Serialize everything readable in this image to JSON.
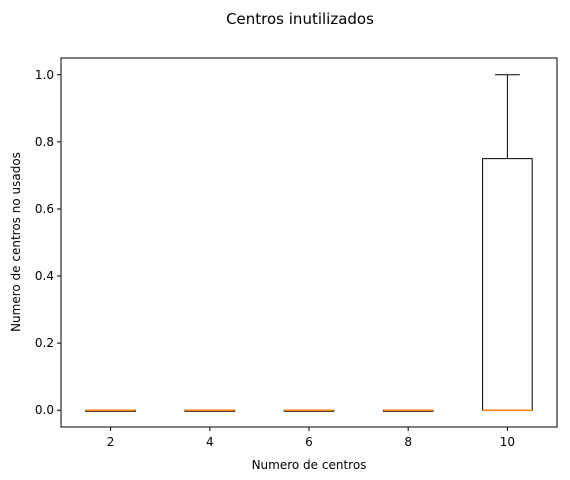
{
  "chart_data": {
    "type": "box",
    "title": "Centros inutilizados",
    "xlabel": "Numero de centros",
    "ylabel": "Numero de centros no usados",
    "categories": [
      "2",
      "4",
      "6",
      "8",
      "10"
    ],
    "boxes": [
      {
        "category": "2",
        "min": 0,
        "q1": 0,
        "median": 0,
        "q3": 0,
        "max": 0
      },
      {
        "category": "4",
        "min": 0,
        "q1": 0,
        "median": 0,
        "q3": 0,
        "max": 0
      },
      {
        "category": "6",
        "min": 0,
        "q1": 0,
        "median": 0,
        "q3": 0,
        "max": 0
      },
      {
        "category": "8",
        "min": 0,
        "q1": 0,
        "median": 0,
        "q3": 0,
        "max": 0
      },
      {
        "category": "10",
        "min": 0,
        "q1": 0,
        "median": 0,
        "q3": 0.75,
        "max": 1.0
      }
    ],
    "yticks": [
      "0.0",
      "0.2",
      "0.4",
      "0.6",
      "0.8",
      "1.0"
    ],
    "ylim": [
      -0.05,
      1.05
    ],
    "grid": false,
    "colors": {
      "box": "#000000",
      "median": "#ff7f0e"
    }
  }
}
